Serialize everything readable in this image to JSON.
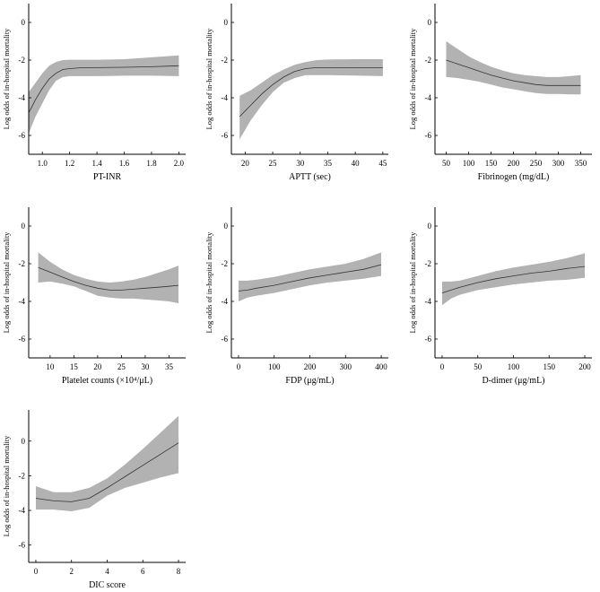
{
  "figure": {
    "y_axis_label": "Log odds of in-hospital  mortality"
  },
  "chart_data": [
    {
      "type": "line",
      "xlabel": "PT-INR",
      "ylabel": "Log odds of in-hospital  mortality",
      "xlim": [
        0.9,
        2.05
      ],
      "ylim": [
        -7,
        1
      ],
      "xticks": [
        "1.0",
        "1.2",
        "1.4",
        "1.6",
        "1.8",
        "2.0"
      ],
      "xtick_values": [
        1.0,
        1.2,
        1.4,
        1.6,
        1.8,
        2.0
      ],
      "yticks": [
        "0",
        "-2",
        "-4",
        "-6"
      ],
      "ytick_values": [
        0,
        -2,
        -4,
        -6
      ],
      "x": [
        0.9,
        0.95,
        1.0,
        1.05,
        1.1,
        1.15,
        1.2,
        1.3,
        1.4,
        1.6,
        1.8,
        2.0
      ],
      "y": [
        -4.8,
        -4.1,
        -3.5,
        -3.0,
        -2.7,
        -2.5,
        -2.45,
        -2.4,
        -2.4,
        -2.38,
        -2.35,
        -2.3
      ],
      "lower": [
        -5.9,
        -5.0,
        -4.3,
        -3.6,
        -3.1,
        -2.9,
        -2.85,
        -2.85,
        -2.85,
        -2.83,
        -2.83,
        -2.85
      ],
      "upper": [
        -3.7,
        -3.2,
        -2.7,
        -2.3,
        -2.1,
        -2.0,
        -1.98,
        -1.98,
        -1.98,
        -1.95,
        -1.85,
        -1.75
      ]
    },
    {
      "type": "line",
      "xlabel": "APTT (sec)",
      "ylabel": "Log odds of in-hospital  mortality",
      "xlim": [
        17.5,
        46
      ],
      "ylim": [
        -7,
        1
      ],
      "xticks": [
        "20",
        "25",
        "30",
        "35",
        "40",
        "45"
      ],
      "xtick_values": [
        20,
        25,
        30,
        35,
        40,
        45
      ],
      "yticks": [
        "0",
        "-2",
        "-4",
        "-6"
      ],
      "ytick_values": [
        0,
        -2,
        -4,
        -6
      ],
      "x": [
        19,
        21,
        23,
        25,
        27,
        29,
        31,
        33,
        35,
        40,
        45
      ],
      "y": [
        -5.0,
        -4.4,
        -3.8,
        -3.3,
        -2.9,
        -2.6,
        -2.45,
        -2.4,
        -2.4,
        -2.4,
        -2.4
      ],
      "lower": [
        -6.2,
        -5.2,
        -4.4,
        -3.7,
        -3.2,
        -2.95,
        -2.8,
        -2.8,
        -2.8,
        -2.82,
        -2.85
      ],
      "upper": [
        -3.9,
        -3.6,
        -3.2,
        -2.8,
        -2.5,
        -2.25,
        -2.1,
        -2.0,
        -1.97,
        -1.95,
        -1.95
      ]
    },
    {
      "type": "line",
      "xlabel": "Fibrinogen (mg/dL)",
      "ylabel": "Log odds of in-hospital  mortality",
      "xlim": [
        25,
        375
      ],
      "ylim": [
        -7,
        1
      ],
      "xticks": [
        "50",
        "100",
        "150",
        "200",
        "250",
        "300",
        "350"
      ],
      "xtick_values": [
        50,
        100,
        150,
        200,
        250,
        300,
        350
      ],
      "yticks": [
        "0",
        "-2",
        "-4",
        "-6"
      ],
      "ytick_values": [
        0,
        -2,
        -4,
        -6
      ],
      "x": [
        50,
        75,
        100,
        125,
        150,
        175,
        200,
        225,
        250,
        275,
        300,
        325,
        350
      ],
      "y": [
        -2.0,
        -2.2,
        -2.4,
        -2.6,
        -2.8,
        -2.95,
        -3.1,
        -3.2,
        -3.3,
        -3.35,
        -3.35,
        -3.35,
        -3.35
      ],
      "lower": [
        -2.9,
        -2.95,
        -3.05,
        -3.15,
        -3.3,
        -3.45,
        -3.55,
        -3.65,
        -3.75,
        -3.8,
        -3.8,
        -3.82,
        -3.82
      ],
      "upper": [
        -1.0,
        -1.4,
        -1.8,
        -2.1,
        -2.35,
        -2.55,
        -2.7,
        -2.8,
        -2.85,
        -2.9,
        -2.9,
        -2.85,
        -2.8
      ]
    },
    {
      "type": "line",
      "xlabel": "Platelet counts (×10⁴/μL)",
      "ylabel": "Log odds of in-hospital  mortality",
      "xlim": [
        5.5,
        38.5
      ],
      "ylim": [
        -7,
        1
      ],
      "xticks": [
        "10",
        "15",
        "20",
        "25",
        "30",
        "35"
      ],
      "xtick_values": [
        10,
        15,
        20,
        25,
        30,
        35
      ],
      "yticks": [
        "0",
        "-2",
        "-4",
        "-6"
      ],
      "ytick_values": [
        0,
        -2,
        -4,
        -6
      ],
      "x": [
        7.5,
        10,
        12.5,
        15,
        17.5,
        20,
        22.5,
        25,
        27.5,
        30,
        32.5,
        35,
        37
      ],
      "y": [
        -2.2,
        -2.45,
        -2.7,
        -2.95,
        -3.15,
        -3.3,
        -3.4,
        -3.4,
        -3.35,
        -3.3,
        -3.25,
        -3.2,
        -3.15
      ],
      "lower": [
        -3.0,
        -2.95,
        -3.05,
        -3.2,
        -3.45,
        -3.7,
        -3.8,
        -3.85,
        -3.85,
        -3.9,
        -3.95,
        -4.0,
        -4.1
      ],
      "upper": [
        -1.4,
        -1.9,
        -2.3,
        -2.6,
        -2.8,
        -2.95,
        -3.0,
        -2.95,
        -2.85,
        -2.7,
        -2.5,
        -2.3,
        -2.1
      ]
    },
    {
      "type": "line",
      "xlabel": "FDP (μg/mL)",
      "ylabel": "Log odds of in-hospital  mortality",
      "xlim": [
        -20,
        420
      ],
      "ylim": [
        -7,
        1
      ],
      "xticks": [
        "0",
        "100",
        "200",
        "300",
        "400"
      ],
      "xtick_values": [
        0,
        100,
        200,
        300,
        400
      ],
      "yticks": [
        "0",
        "-2",
        "-4",
        "-6"
      ],
      "ytick_values": [
        0,
        -2,
        -4,
        -6
      ],
      "x": [
        0,
        25,
        50,
        100,
        150,
        200,
        250,
        300,
        350,
        400
      ],
      "y": [
        -3.45,
        -3.4,
        -3.3,
        -3.15,
        -2.95,
        -2.75,
        -2.6,
        -2.45,
        -2.3,
        -2.05
      ],
      "lower": [
        -4.0,
        -3.8,
        -3.7,
        -3.55,
        -3.35,
        -3.15,
        -3.0,
        -2.9,
        -2.8,
        -2.65
      ],
      "upper": [
        -2.9,
        -2.9,
        -2.85,
        -2.7,
        -2.5,
        -2.3,
        -2.15,
        -2.0,
        -1.75,
        -1.4
      ]
    },
    {
      "type": "line",
      "xlabel": "D-dimer (μg/mL)",
      "ylabel": "Log odds of in-hospital  mortality",
      "xlim": [
        -10,
        210
      ],
      "ylim": [
        -7,
        1
      ],
      "xticks": [
        "0",
        "50",
        "100",
        "150",
        "200"
      ],
      "xtick_values": [
        0,
        50,
        100,
        150,
        200
      ],
      "yticks": [
        "0",
        "-2",
        "-4",
        "-6"
      ],
      "ytick_values": [
        0,
        -2,
        -4,
        -6
      ],
      "x": [
        0,
        12.5,
        25,
        50,
        75,
        100,
        125,
        150,
        175,
        200
      ],
      "y": [
        -3.55,
        -3.4,
        -3.25,
        -3.0,
        -2.8,
        -2.65,
        -2.5,
        -2.4,
        -2.25,
        -2.15
      ],
      "lower": [
        -4.2,
        -3.85,
        -3.65,
        -3.4,
        -3.25,
        -3.1,
        -3.0,
        -2.9,
        -2.85,
        -2.75
      ],
      "upper": [
        -2.95,
        -2.95,
        -2.9,
        -2.65,
        -2.4,
        -2.2,
        -2.05,
        -1.9,
        -1.7,
        -1.45
      ]
    },
    {
      "type": "line",
      "xlabel": "DIC score",
      "ylabel": "Log odds of in-hospital  mortality",
      "xlim": [
        -0.4,
        8.4
      ],
      "ylim": [
        -7,
        1.8
      ],
      "xticks": [
        "0",
        "2",
        "4",
        "6",
        "8"
      ],
      "xtick_values": [
        0,
        2,
        4,
        6,
        8
      ],
      "yticks": [
        "0",
        "-2",
        "-4",
        "-6"
      ],
      "ytick_values": [
        0,
        -2,
        -4,
        -6
      ],
      "x": [
        0,
        1,
        2,
        3,
        4,
        5,
        6,
        7,
        8
      ],
      "y": [
        -3.3,
        -3.45,
        -3.5,
        -3.3,
        -2.7,
        -2.05,
        -1.4,
        -0.75,
        -0.1
      ],
      "lower": [
        -3.95,
        -3.95,
        -4.05,
        -3.85,
        -3.15,
        -2.7,
        -2.4,
        -2.1,
        -1.85
      ],
      "upper": [
        -2.6,
        -2.95,
        -2.95,
        -2.7,
        -2.15,
        -1.35,
        -0.45,
        0.5,
        1.45
      ]
    }
  ]
}
